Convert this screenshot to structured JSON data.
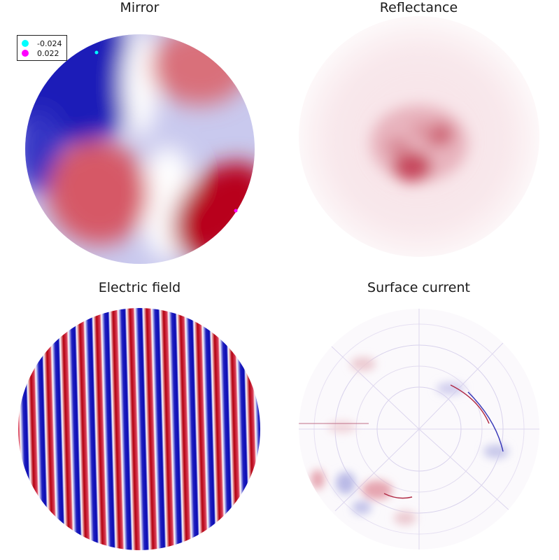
{
  "chart_data": [
    {
      "type": "heatmap",
      "title": "Mirror",
      "colormap": [
        "#0a0ab4",
        "#ffffff",
        "#b4000f"
      ],
      "legend": [
        {
          "label": "-0.024",
          "color": "#00ffff"
        },
        {
          "label": "0.022",
          "color": "#ff00ff"
        }
      ],
      "legend_position": "top-left",
      "grid": false
    },
    {
      "type": "heatmap",
      "title": "Reflectance",
      "colormap": [
        "#ffffff",
        "#b4000f"
      ],
      "grid": false
    },
    {
      "type": "heatmap",
      "title": "Electric field",
      "colormap": [
        "#0a0ab4",
        "#ffffff",
        "#b4000f"
      ],
      "grid": false
    },
    {
      "type": "heatmap",
      "title": "Surface current",
      "colormap": [
        "#0a0ab4",
        "#ffffff",
        "#b4000f"
      ],
      "grid": false
    }
  ]
}
